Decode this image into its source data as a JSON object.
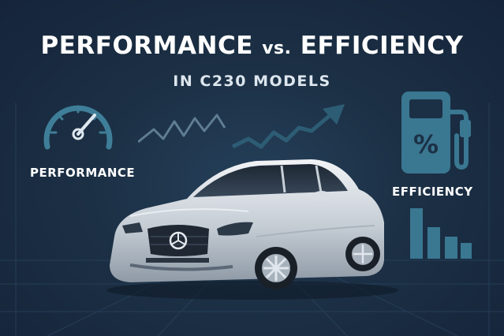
{
  "title": {
    "main": "PERFORMANCE",
    "vs": "vs.",
    "second": "EFFICIENCY"
  },
  "subtitle": "IN C230 MODELS",
  "left_label": "PERFORMANCE",
  "right_label": "EFFICIENCY",
  "pump_symbol": "%",
  "icons": [
    "speedometer-icon",
    "fuel-pump-icon",
    "bar-chart-icon",
    "trend-line-icon"
  ],
  "colors": {
    "background": "#1c3045",
    "accent": "#3f7e98",
    "text": "#ffffff"
  }
}
